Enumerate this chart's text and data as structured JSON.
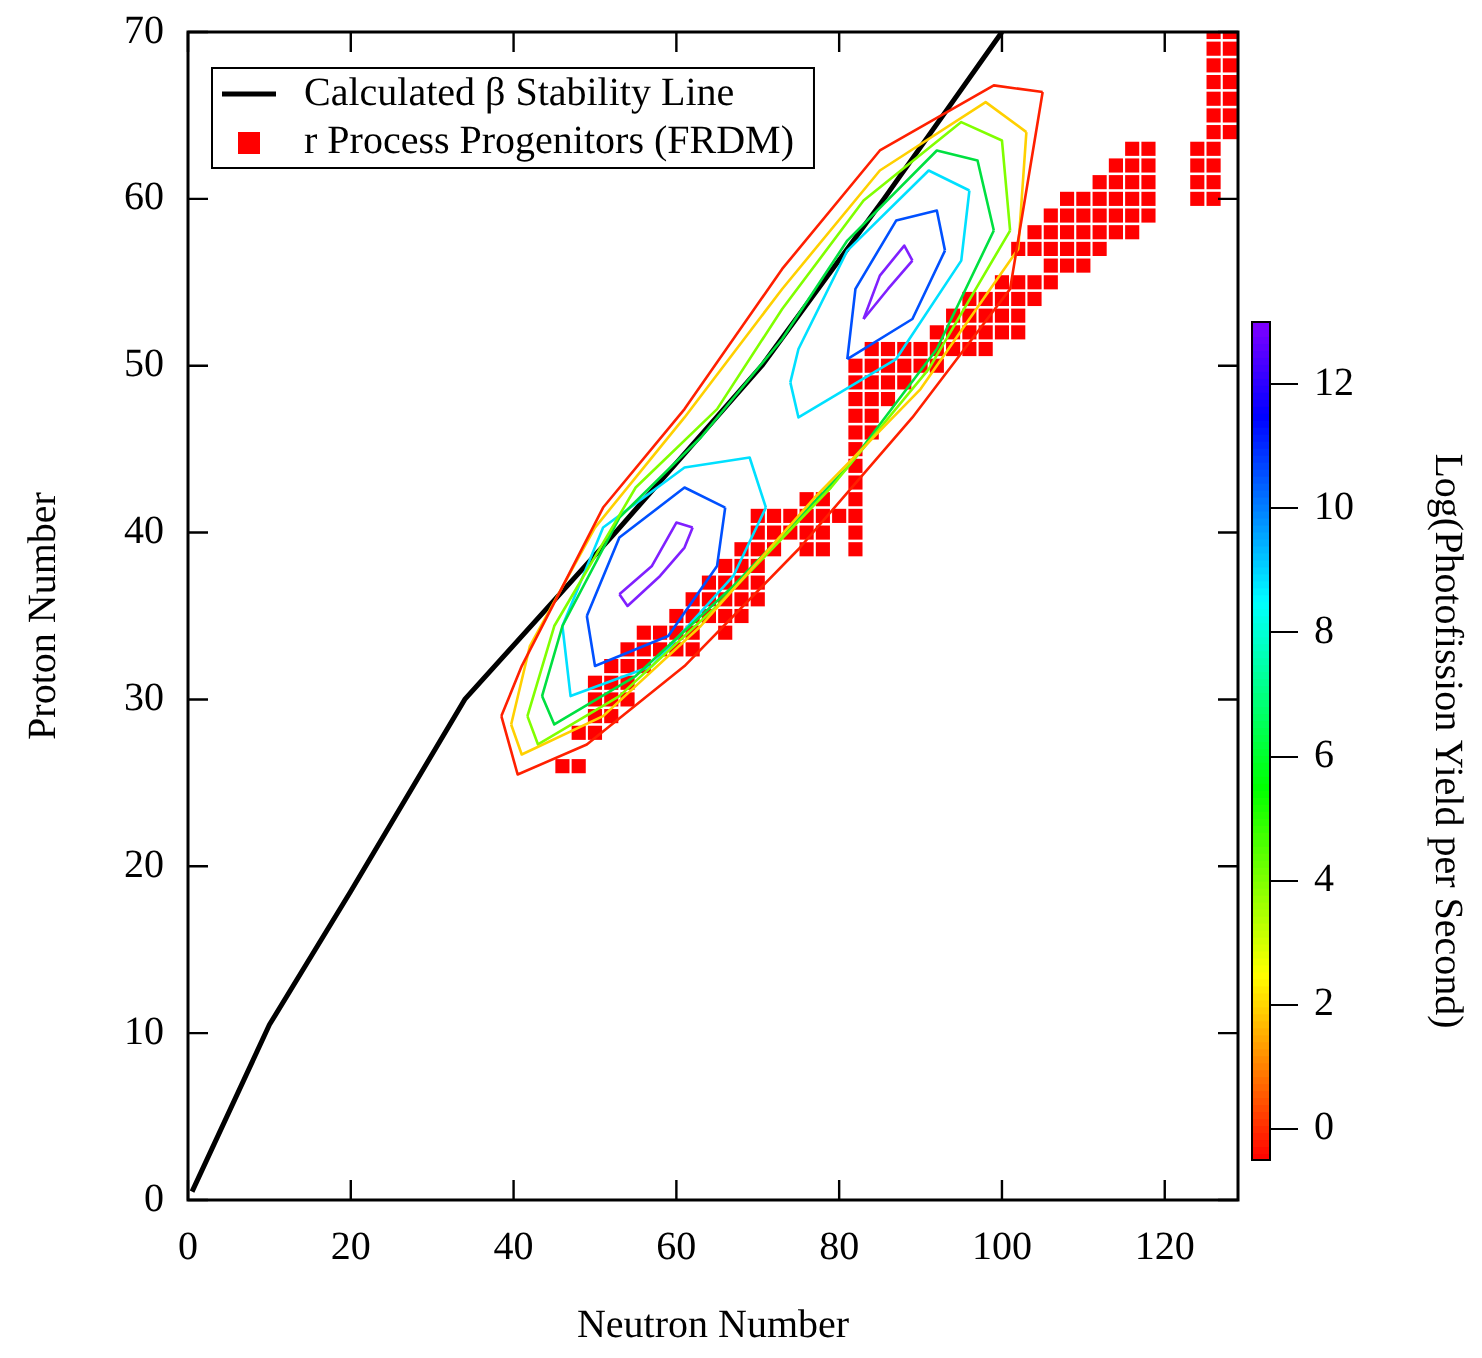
{
  "chart_data": {
    "type": "line",
    "xlabel": "Neutron Number",
    "ylabel": "Proton Number",
    "clabel": "Log(Photofission Yield per Second)",
    "xlim": [
      0,
      129
    ],
    "ylim": [
      0,
      70
    ],
    "xticks": [
      0,
      20,
      40,
      60,
      80,
      100,
      120
    ],
    "yticks": [
      0,
      10,
      20,
      30,
      40,
      50,
      60,
      70
    ],
    "clim": [
      -0.5,
      13
    ],
    "cticks": [
      0,
      2,
      4,
      6,
      8,
      10,
      12
    ],
    "grid": false,
    "legend": "top left",
    "series": [
      {
        "type": "line",
        "color": "#ff2000",
        "marker": "none",
        "x": [
          38.5,
          40.5,
          49,
          61,
          75,
          89,
          101,
          105
        ],
        "values": [
          29,
          25.5,
          27.3,
          32,
          39,
          46.9,
          54.6,
          66.4
        ]
      },
      {
        "type": "line",
        "color": "#ff2000",
        "marker": "none",
        "x": [
          38.5,
          41,
          51,
          61,
          73,
          85,
          99,
          105
        ],
        "values": [
          29,
          32,
          41.5,
          47.4,
          55.8,
          62.9,
          66.8,
          66.4
        ]
      },
      {
        "type": "line",
        "color": "#ffd000",
        "marker": "none",
        "x": [
          39.7,
          41,
          51,
          63,
          77,
          90,
          102,
          103
        ],
        "values": [
          28.5,
          26.7,
          29,
          34.4,
          42.1,
          48.6,
          57,
          64
        ]
      },
      {
        "type": "line",
        "color": "#ffd000",
        "marker": "none",
        "x": [
          39.7,
          42,
          50,
          61,
          73,
          85,
          98,
          103
        ],
        "values": [
          28.5,
          33.2,
          40.3,
          46.9,
          54.6,
          61.7,
          65.8,
          64
        ]
      },
      {
        "type": "line",
        "color": "#80ff00",
        "marker": "none",
        "x": [
          41.7,
          43,
          53,
          65,
          79,
          91,
          101
        ],
        "values": [
          29,
          27.3,
          30.2,
          35.6,
          42.7,
          49.8,
          58.1
        ]
      },
      {
        "type": "line",
        "color": "#80ff00",
        "marker": "none",
        "x": [
          41.7,
          45,
          55,
          65,
          73,
          83,
          95,
          100,
          101
        ],
        "values": [
          29,
          34.4,
          42.7,
          47.4,
          53.4,
          59.9,
          64.6,
          63.5,
          58.1
        ]
      },
      {
        "type": "line",
        "color": "#00e040",
        "marker": "none",
        "x": [
          43.5,
          45,
          55,
          67,
          81,
          92,
          99
        ],
        "values": [
          30.2,
          28.5,
          31.4,
          36.8,
          43.9,
          51,
          58.1
        ]
      },
      {
        "type": "line",
        "color": "#00e040",
        "marker": "none",
        "x": [
          43.5,
          46,
          53,
          63,
          73,
          81,
          92,
          97,
          99
        ],
        "values": [
          30.2,
          34.4,
          40.9,
          45.7,
          51.6,
          57.5,
          62.9,
          62.3,
          58.1
        ]
      },
      {
        "type": "line",
        "color": "#00e0ff",
        "marker": "none",
        "x": [
          46,
          47,
          57,
          67,
          71
        ],
        "values": [
          34.4,
          30.2,
          32,
          37.4,
          41.5
        ]
      },
      {
        "type": "line",
        "color": "#00e0ff",
        "marker": "none",
        "x": [
          46,
          51,
          61,
          69,
          71
        ],
        "values": [
          34.4,
          40.3,
          43.9,
          44.5,
          41.5
        ]
      },
      {
        "type": "line",
        "color": "#00e0ff",
        "marker": "none",
        "x": [
          74,
          75,
          87,
          95,
          96
        ],
        "values": [
          49,
          46.9,
          50.4,
          56.3,
          60.5
        ]
      },
      {
        "type": "line",
        "color": "#00e0ff",
        "marker": "none",
        "x": [
          74,
          75,
          81,
          91,
          96
        ],
        "values": [
          49,
          51,
          56.9,
          61.7,
          60.5
        ]
      },
      {
        "type": "line",
        "color": "#0050ff",
        "marker": "none",
        "x": [
          49,
          50,
          59,
          65,
          66
        ],
        "values": [
          35,
          32,
          33.8,
          38,
          41.5
        ]
      },
      {
        "type": "line",
        "color": "#0050ff",
        "marker": "none",
        "x": [
          49,
          53,
          61,
          66
        ],
        "values": [
          35,
          39.7,
          42.7,
          41.5
        ]
      },
      {
        "type": "line",
        "color": "#0050ff",
        "marker": "none",
        "x": [
          81,
          89,
          93
        ],
        "values": [
          50.4,
          52.8,
          56.9
        ]
      },
      {
        "type": "line",
        "color": "#0050ff",
        "marker": "none",
        "x": [
          81,
          82,
          87,
          92,
          93
        ],
        "values": [
          50.4,
          54.6,
          58.7,
          59.3,
          56.9
        ]
      },
      {
        "type": "line",
        "color": "#8020ff",
        "marker": "none",
        "x": [
          53,
          54,
          58,
          61,
          62
        ],
        "values": [
          36.3,
          35.6,
          37.4,
          39.1,
          40.3
        ]
      },
      {
        "type": "line",
        "color": "#8020ff",
        "marker": "none",
        "x": [
          53,
          57,
          60,
          62
        ],
        "values": [
          36.3,
          38,
          40.6,
          40.3
        ]
      },
      {
        "type": "line",
        "color": "#8020ff",
        "marker": "none",
        "x": [
          83,
          86,
          89
        ],
        "values": [
          52.8,
          54.6,
          56.3
        ]
      },
      {
        "type": "line",
        "color": "#8020ff",
        "marker": "none",
        "x": [
          83,
          85,
          88,
          89
        ],
        "values": [
          52.8,
          55.4,
          57.2,
          56.3
        ]
      },
      {
        "type": "line",
        "name": "Calculated β Stability Line",
        "color": "#000000",
        "marker": "none",
        "x": [
          0.5,
          10,
          20,
          34,
          52.5,
          70.5,
          85.5,
          100
        ],
        "values": [
          0.5,
          10.5,
          18.5,
          30,
          40,
          50,
          60,
          70
        ]
      },
      {
        "type": "scatter",
        "name": "r Process Progenitors (FRDM)",
        "color": "#ff0000",
        "marker": "square",
        "x": [
          46,
          48,
          48,
          50,
          50,
          52,
          50,
          52,
          54,
          50,
          52,
          54,
          52,
          54,
          56,
          54,
          56,
          58,
          60,
          62,
          56,
          58,
          60,
          62,
          66,
          60,
          62,
          64,
          66,
          68,
          62,
          64,
          66,
          68,
          70,
          64,
          66,
          68,
          70,
          66,
          68,
          70,
          68,
          70,
          72,
          76,
          78,
          82,
          70,
          72,
          74,
          76,
          78,
          82,
          70,
          72,
          74,
          76,
          78,
          80,
          82,
          76,
          78,
          82,
          82,
          82,
          82,
          82,
          84,
          82,
          84,
          82,
          84,
          86,
          82,
          84,
          86,
          88,
          82,
          84,
          86,
          88,
          90,
          92,
          84,
          86,
          88,
          90,
          92,
          94,
          96,
          98,
          92,
          94,
          96,
          98,
          100,
          102,
          94,
          96,
          98,
          100,
          102,
          96,
          98,
          100,
          102,
          104,
          100,
          102,
          104,
          106,
          106,
          108,
          110,
          102,
          104,
          106,
          108,
          110,
          112,
          104,
          106,
          108,
          110,
          112,
          114,
          116,
          106,
          108,
          110,
          112,
          114,
          116,
          118,
          108,
          110,
          112,
          114,
          116,
          118,
          124,
          126,
          112,
          114,
          116,
          118,
          124,
          126,
          114,
          116,
          118,
          124,
          126,
          116,
          118,
          124,
          126,
          126,
          128,
          126,
          128,
          126,
          128,
          126,
          128,
          126,
          128,
          126,
          128,
          126,
          128
        ],
        "values": [
          26,
          26,
          28,
          28,
          29,
          29,
          30,
          30,
          30,
          31,
          31,
          31,
          32,
          32,
          32,
          33,
          33,
          33,
          33,
          33,
          34,
          34,
          34,
          34,
          34,
          35,
          35,
          35,
          35,
          35,
          36,
          36,
          36,
          36,
          36,
          37,
          37,
          37,
          37,
          38,
          38,
          38,
          39,
          39,
          39,
          39,
          39,
          39,
          40,
          40,
          40,
          40,
          40,
          40,
          41,
          41,
          41,
          41,
          41,
          41,
          41,
          42,
          42,
          42,
          43,
          44,
          45,
          46,
          46,
          47,
          47,
          48,
          48,
          48,
          49,
          49,
          49,
          49,
          50,
          50,
          50,
          50,
          50,
          50,
          51,
          51,
          51,
          51,
          51,
          51,
          51,
          51,
          52,
          52,
          52,
          52,
          52,
          52,
          53,
          53,
          53,
          53,
          53,
          54,
          54,
          54,
          54,
          54,
          55,
          55,
          55,
          55,
          56,
          56,
          56,
          57,
          57,
          57,
          57,
          57,
          57,
          58,
          58,
          58,
          58,
          58,
          58,
          58,
          59,
          59,
          59,
          59,
          59,
          59,
          59,
          60,
          60,
          60,
          60,
          60,
          60,
          60,
          60,
          61,
          61,
          61,
          61,
          61,
          61,
          62,
          62,
          62,
          62,
          62,
          63,
          63,
          63,
          63,
          64,
          64,
          65,
          65,
          66,
          66,
          67,
          67,
          68,
          68,
          69,
          69,
          70,
          70
        ]
      }
    ]
  }
}
